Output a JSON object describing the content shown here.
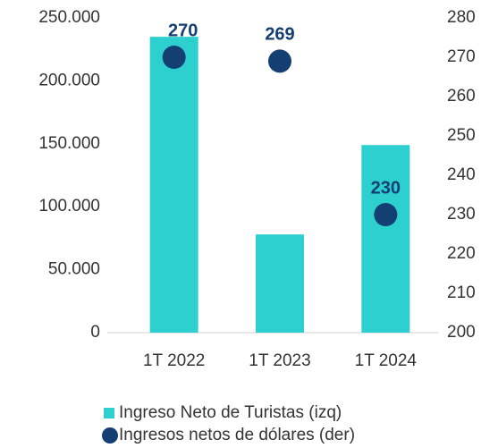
{
  "chart_data": {
    "type": "bar",
    "categories": [
      "1T 2022",
      "1T 2023",
      "1T 2024"
    ],
    "series": [
      {
        "name": "Ingreso Neto de Turistas (izq)",
        "color": "#2ecfcf",
        "values": [
          235000,
          78000,
          149000
        ]
      },
      {
        "name": "Ingresos netos de dólares (der)",
        "color": "#143f73",
        "type": "scatter",
        "axis": "y2",
        "values": [
          270,
          269,
          230
        ]
      }
    ],
    "ylim": [
      0,
      250000
    ],
    "yticks": [
      0,
      {
        "value": 50000,
        "label": "50.000"
      },
      {
        "value": 100000,
        "label": "100.000"
      },
      {
        "value": 150000,
        "label": "150.000"
      },
      {
        "value": 200000,
        "label": "200.000"
      },
      {
        "value": 250000,
        "label": "250.000"
      }
    ],
    "y2lim": [
      200,
      280
    ],
    "y2ticks": [
      200,
      210,
      220,
      230,
      240,
      250,
      260,
      270,
      280
    ],
    "legend": "bottom"
  }
}
